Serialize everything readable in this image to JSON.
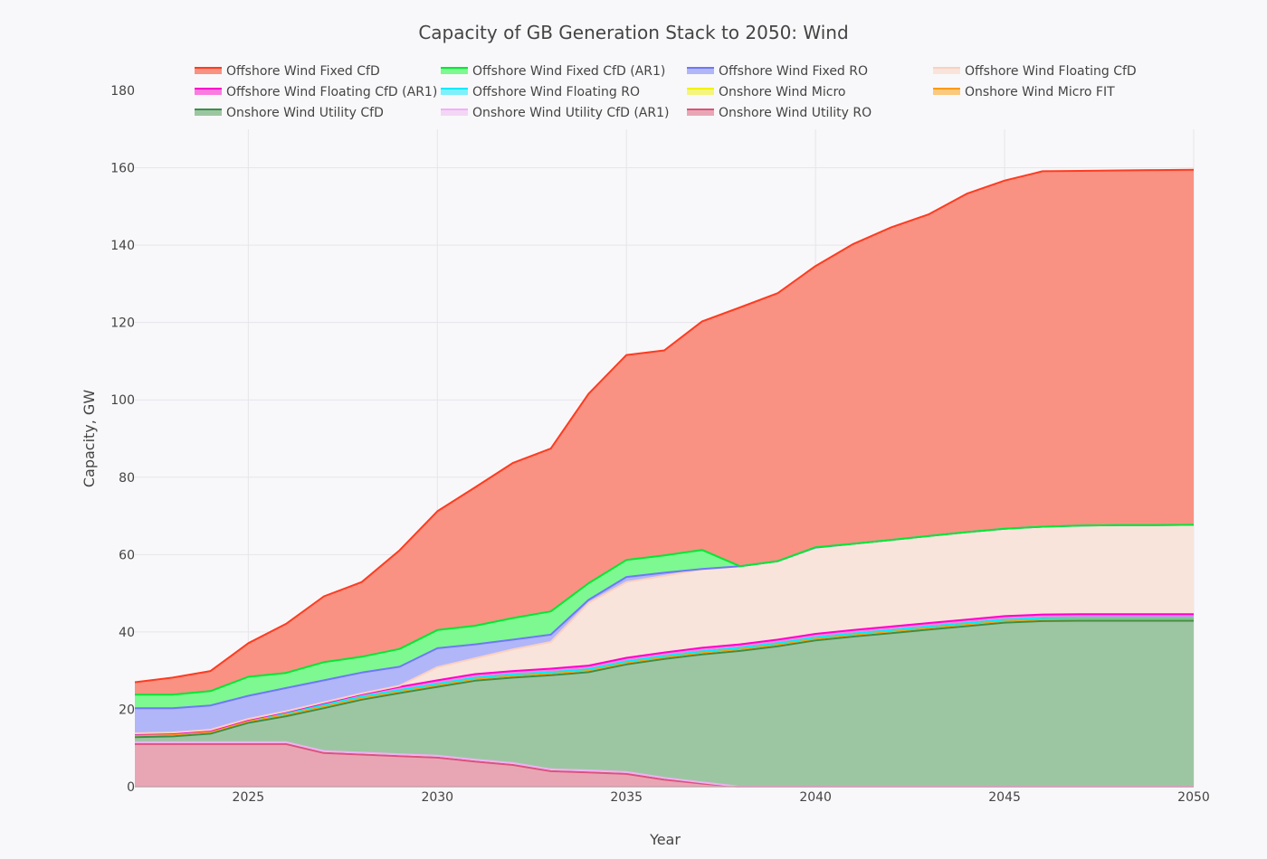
{
  "chart_data": {
    "type": "area",
    "stacked": true,
    "title": "Capacity of GB Generation Stack to 2050: Wind",
    "xlabel": "Year",
    "ylabel": "Capacity, GW",
    "xlim": [
      2022,
      2050
    ],
    "ylim": [
      0,
      180
    ],
    "x_ticks": [
      "2025",
      "2030",
      "2035",
      "2040",
      "2045",
      "2050"
    ],
    "y_ticks": [
      "0",
      "20",
      "40",
      "60",
      "80",
      "100",
      "120",
      "140",
      "160",
      "180"
    ],
    "grid": true,
    "legend_position": "top",
    "x": [
      2022,
      2023,
      2024,
      2025,
      2026,
      2027,
      2028,
      2029,
      2030,
      2031,
      2032,
      2033,
      2034,
      2035,
      2036,
      2037,
      2038,
      2039,
      2040,
      2041,
      2042,
      2043,
      2044,
      2045,
      2046,
      2047,
      2048,
      2049,
      2050
    ],
    "series": [
      {
        "name": "Offshore Wind Fixed CfD",
        "color": "#ff3b1f",
        "fill": "#f99283",
        "values": [
          3.2,
          4.4,
          5.2,
          8.7,
          12.7,
          17.0,
          19.3,
          25.5,
          30.7,
          35.8,
          40.1,
          42.1,
          49.0,
          53.0,
          53.0,
          59.1,
          66.9,
          69.3,
          72.7,
          77.5,
          80.8,
          83.2,
          87.5,
          90.0,
          91.9,
          91.7,
          91.7,
          91.8,
          91.8
        ]
      },
      {
        "name": "Offshore Wind Fixed CfD (AR1)",
        "color": "#00e832",
        "fill": "#7ef890",
        "values": [
          3.5,
          3.5,
          3.7,
          4.9,
          3.9,
          4.7,
          4.1,
          4.6,
          4.7,
          4.8,
          5.6,
          6.0,
          4.3,
          4.4,
          4.5,
          4.9,
          0,
          0,
          0.1,
          0,
          0,
          0,
          0,
          0,
          0,
          0,
          0,
          0,
          0
        ]
      },
      {
        "name": "Offshore Wind Fixed RO",
        "color": "#6f78f7",
        "fill": "#b1b6f9",
        "values": [
          6.5,
          6.3,
          6.3,
          6.0,
          6.0,
          5.7,
          5.4,
          4.9,
          4.9,
          3.6,
          2.5,
          1.9,
          0.8,
          1.3,
          0.8,
          0.1,
          0,
          0,
          0,
          0,
          0,
          0,
          0,
          0,
          0,
          0,
          0,
          0,
          0
        ]
      },
      {
        "name": "Offshore Wind Floating CfD",
        "color": "#fcd0bf",
        "fill": "#f9e4dc",
        "values": [
          0.2,
          0.2,
          0.2,
          0.2,
          0.2,
          0.2,
          0.2,
          0.3,
          3.4,
          4.1,
          5.6,
          6.9,
          16.2,
          19.6,
          19.8,
          20.3,
          20.2,
          20.3,
          22.3,
          22.3,
          22.4,
          22.5,
          22.6,
          22.6,
          22.7,
          22.9,
          23.0,
          23.0,
          23.1
        ]
      },
      {
        "name": "Offshore Wind Floating CfD (AR1)",
        "color": "#ff00cc",
        "fill": "#fb7ce0",
        "values": [
          0,
          0,
          0,
          0,
          0.3,
          0.5,
          0.6,
          0.8,
          0.9,
          0.9,
          0.9,
          0.9,
          0.9,
          0.9,
          0.9,
          0.9,
          0.9,
          0.9,
          0.9,
          0.9,
          0.9,
          0.9,
          0.9,
          0.9,
          0.9,
          0.9,
          0.9,
          0.9,
          0.9
        ]
      },
      {
        "name": "Offshore Wind Floating RO",
        "color": "#00eaff",
        "fill": "#7cf1fc",
        "values": [
          0,
          0,
          0,
          0,
          0,
          0,
          0,
          0,
          0,
          0,
          0,
          0,
          0,
          0,
          0,
          0,
          0,
          0,
          0,
          0,
          0,
          0,
          0,
          0,
          0,
          0,
          0,
          0,
          0
        ]
      },
      {
        "name": "Onshore Wind Micro",
        "color": "#f2f200",
        "fill": "#f5f57c",
        "values": [
          0.3,
          0.3,
          0.3,
          0.3,
          0.3,
          0.3,
          0.3,
          0.3,
          0.3,
          0.3,
          0.3,
          0.3,
          0.3,
          0.3,
          0.3,
          0.3,
          0.3,
          0.3,
          0.3,
          0.3,
          0.3,
          0.3,
          0.3,
          0.3,
          0.3,
          0.3,
          0.3,
          0.3,
          0.3
        ]
      },
      {
        "name": "Onshore Wind Micro FIT",
        "color": "#ff9a00",
        "fill": "#fbc97c",
        "values": [
          0.5,
          0.5,
          0.5,
          0.5,
          0.5,
          0.5,
          0.5,
          0.5,
          0.5,
          0.5,
          0.5,
          0.5,
          0.5,
          0.5,
          0.5,
          0.5,
          0.5,
          0.5,
          0.5,
          0.5,
          0.5,
          0.5,
          0.5,
          0.5,
          0.5,
          0.5,
          0.5,
          0.5,
          0.5
        ]
      },
      {
        "name": "Onshore Wind Utility CfD",
        "color": "#3d8d4a",
        "fill": "#9cc6a2",
        "values": [
          1.3,
          1.5,
          2.2,
          5.0,
          6.7,
          11.1,
          13.7,
          15.8,
          17.8,
          20.4,
          22.1,
          24.3,
          25.4,
          27.8,
          30.7,
          33.1,
          35.1,
          36.3,
          37.8,
          38.8,
          39.7,
          40.6,
          41.5,
          42.4,
          42.8,
          42.9,
          42.9,
          42.9,
          42.9
        ]
      },
      {
        "name": "Onshore Wind Utility CfD (AR1)",
        "color": "#f0b0f5",
        "fill": "#f3d6f6",
        "values": [
          0.5,
          0.5,
          0.5,
          0.5,
          0.5,
          0.5,
          0.5,
          0.5,
          0.5,
          0.5,
          0.5,
          0.5,
          0.5,
          0.5,
          0.5,
          0.3,
          0,
          0,
          0,
          0,
          0,
          0,
          0,
          0,
          0,
          0,
          0,
          0,
          0
        ]
      },
      {
        "name": "Onshore Wind Utility RO",
        "color": "#d9547a",
        "fill": "#e8a6b5",
        "values": [
          11,
          11,
          11,
          11,
          11,
          8.7,
          8.3,
          7.9,
          7.5,
          6.5,
          5.6,
          4.0,
          3.7,
          3.3,
          1.8,
          0.8,
          0,
          0,
          0,
          0,
          0,
          0,
          0,
          0,
          0,
          0,
          0,
          0,
          0
        ]
      }
    ]
  }
}
